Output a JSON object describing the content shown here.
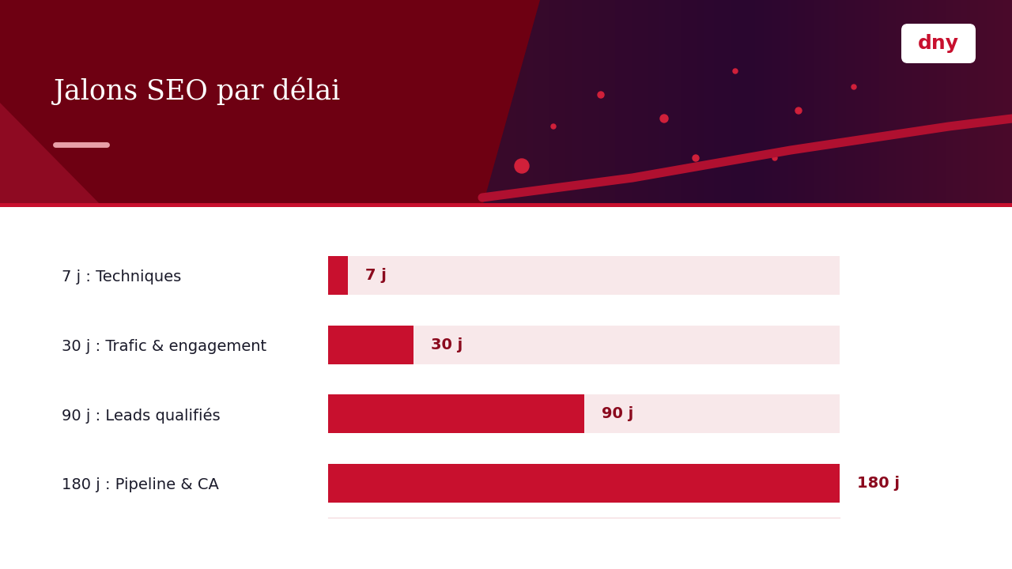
{
  "chart_data": {
    "type": "bar",
    "orientation": "horizontal",
    "title": "Jalons SEO par délai",
    "annotations": [
      "dny"
    ],
    "categories": [
      "7 j : Techniques",
      "30 j : Trafic & engagement",
      "90 j : Leads qualifiés",
      "180 j : Pipeline & CA"
    ],
    "values": [
      7,
      30,
      90,
      180
    ],
    "value_labels": [
      "7 j",
      "30 j",
      "90 j",
      "180 j"
    ],
    "data_labels": true,
    "color": "#c8102e",
    "xlim": [
      0,
      180
    ],
    "tick_labels": "y",
    "grid": false
  }
}
